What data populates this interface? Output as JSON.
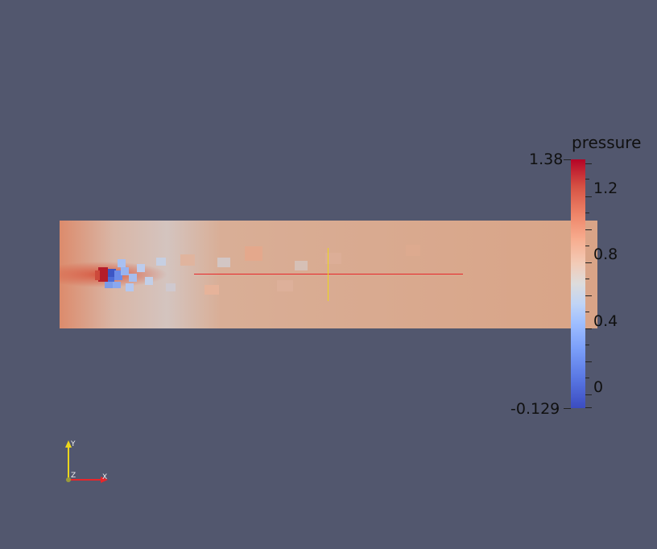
{
  "colorbar": {
    "title": "pressure",
    "max_label": "1.38",
    "min_label": "-0.129",
    "tick_labels": [
      "1.2",
      "0.8",
      "0.4",
      "0"
    ],
    "colormap": "cool-to-warm",
    "range": [
      -0.129,
      1.38
    ]
  },
  "orientation_axes": {
    "x_label": "X",
    "y_label": "Y",
    "z_label": "Z",
    "x_color": "#e8262a",
    "y_color": "#ecd61c"
  },
  "colors": {
    "background": "#52576e",
    "field_base": "#d7a48a",
    "high": "#b40426",
    "low": "#3b4cc0"
  }
}
